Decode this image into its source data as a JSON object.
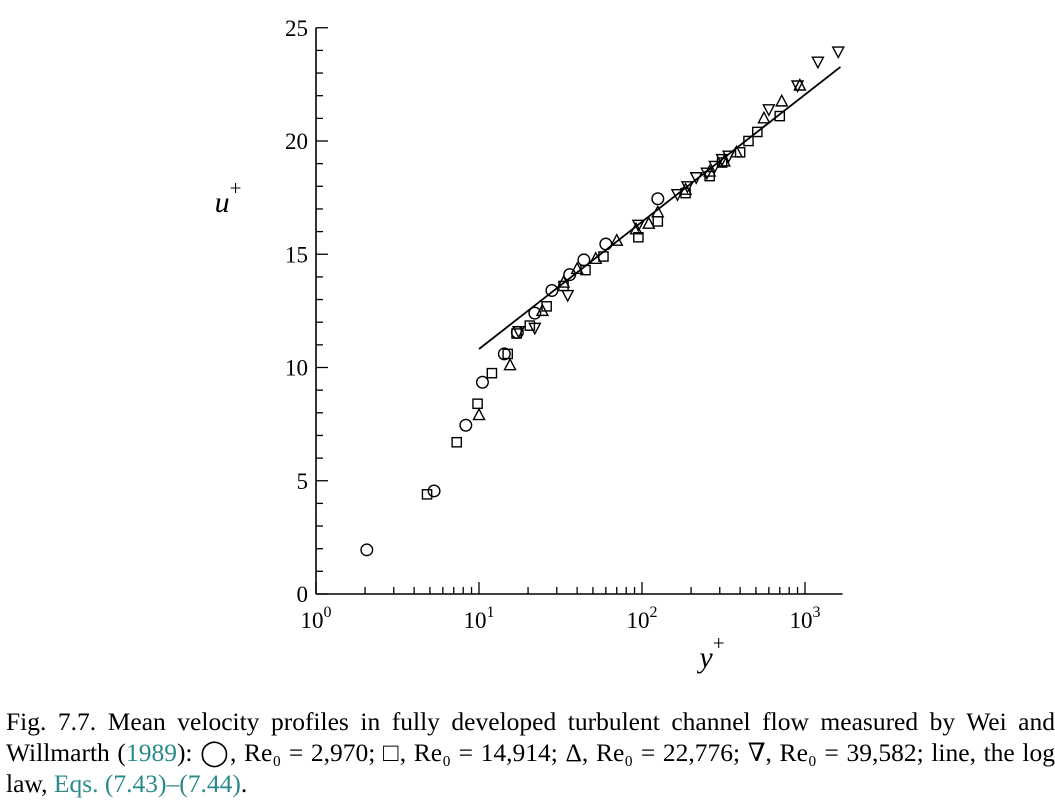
{
  "chart_data": {
    "type": "scatter",
    "xlabel": "y",
    "xlabel_sup": "+",
    "ylabel": "u",
    "ylabel_sup": "+",
    "xscale": "log",
    "xlim": [
      1,
      1700
    ],
    "ylim": [
      0,
      25
    ],
    "yticks": [
      {
        "value": 0,
        "label": "0"
      },
      {
        "value": 5,
        "label": "5"
      },
      {
        "value": 10,
        "label": "10"
      },
      {
        "value": 15,
        "label": "15"
      },
      {
        "value": 20,
        "label": "20"
      },
      {
        "value": 25,
        "label": "25"
      }
    ],
    "xticks": [
      {
        "value": 1,
        "base": "10",
        "exp": "0"
      },
      {
        "value": 10,
        "base": "10",
        "exp": "1"
      },
      {
        "value": 100,
        "base": "10",
        "exp": "2"
      },
      {
        "value": 1000,
        "base": "10",
        "exp": "3"
      }
    ],
    "grid": false,
    "series": [
      {
        "marker": "circle",
        "points": [
          [
            2.05,
            1.95
          ],
          [
            5.3,
            4.55
          ],
          [
            8.3,
            7.45
          ],
          [
            10.5,
            9.35
          ],
          [
            14.3,
            10.6
          ],
          [
            17.2,
            11.55
          ],
          [
            22,
            12.4
          ],
          [
            28,
            13.4
          ],
          [
            36,
            14.1
          ],
          [
            44,
            14.75
          ],
          [
            60,
            15.45
          ],
          [
            125,
            17.45
          ]
        ]
      },
      {
        "marker": "square",
        "points": [
          [
            4.8,
            4.4
          ],
          [
            7.3,
            6.7
          ],
          [
            9.8,
            8.4
          ],
          [
            12,
            9.75
          ],
          [
            15,
            10.6
          ],
          [
            17,
            11.5
          ],
          [
            20.5,
            11.85
          ],
          [
            26,
            12.7
          ],
          [
            33,
            13.6
          ],
          [
            45,
            14.3
          ],
          [
            58,
            14.9
          ],
          [
            95,
            15.75
          ],
          [
            125,
            16.45
          ],
          [
            185,
            17.7
          ],
          [
            260,
            18.45
          ],
          [
            310,
            19.05
          ],
          [
            400,
            19.5
          ],
          [
            450,
            20.0
          ],
          [
            510,
            20.4
          ],
          [
            700,
            21.1
          ]
        ]
      },
      {
        "marker": "triangle-up",
        "points": [
          [
            10,
            7.9
          ],
          [
            15.5,
            10.1
          ],
          [
            24.5,
            12.5
          ],
          [
            33,
            13.75
          ],
          [
            40,
            14.35
          ],
          [
            52,
            14.8
          ],
          [
            70,
            15.6
          ],
          [
            92,
            16.1
          ],
          [
            110,
            16.35
          ],
          [
            125,
            16.85
          ],
          [
            185,
            17.85
          ],
          [
            260,
            18.65
          ],
          [
            320,
            19.1
          ],
          [
            380,
            19.5
          ],
          [
            560,
            21.0
          ],
          [
            720,
            21.75
          ],
          [
            930,
            22.45
          ]
        ]
      },
      {
        "marker": "triangle-down",
        "points": [
          [
            17.5,
            11.6
          ],
          [
            22,
            11.75
          ],
          [
            35,
            13.2
          ],
          [
            95,
            16.3
          ],
          [
            165,
            17.65
          ],
          [
            190,
            18.0
          ],
          [
            215,
            18.4
          ],
          [
            250,
            18.6
          ],
          [
            280,
            18.9
          ],
          [
            310,
            19.2
          ],
          [
            340,
            19.35
          ],
          [
            600,
            21.4
          ],
          [
            900,
            22.45
          ],
          [
            1200,
            23.5
          ],
          [
            1600,
            23.95
          ]
        ]
      }
    ],
    "log_law_line": {
      "kappa": 0.41,
      "B": 5.2,
      "x_range": [
        10,
        1650
      ]
    }
  },
  "caption": {
    "part1": "Fig. 7.7. Mean velocity profiles in fully developed turbulent channel flow measured by Wei and Willmarth (",
    "ref_year": "1989",
    "part2": "): ◯, Re₀ = 2,970; □, Re₀ = 14,914; Δ, Re₀ = 22,776; ∇, Re₀ = 39,582; line, the log law, ",
    "ref_eqs": "Eqs. (7.43)–(7.44)",
    "part3": "."
  }
}
